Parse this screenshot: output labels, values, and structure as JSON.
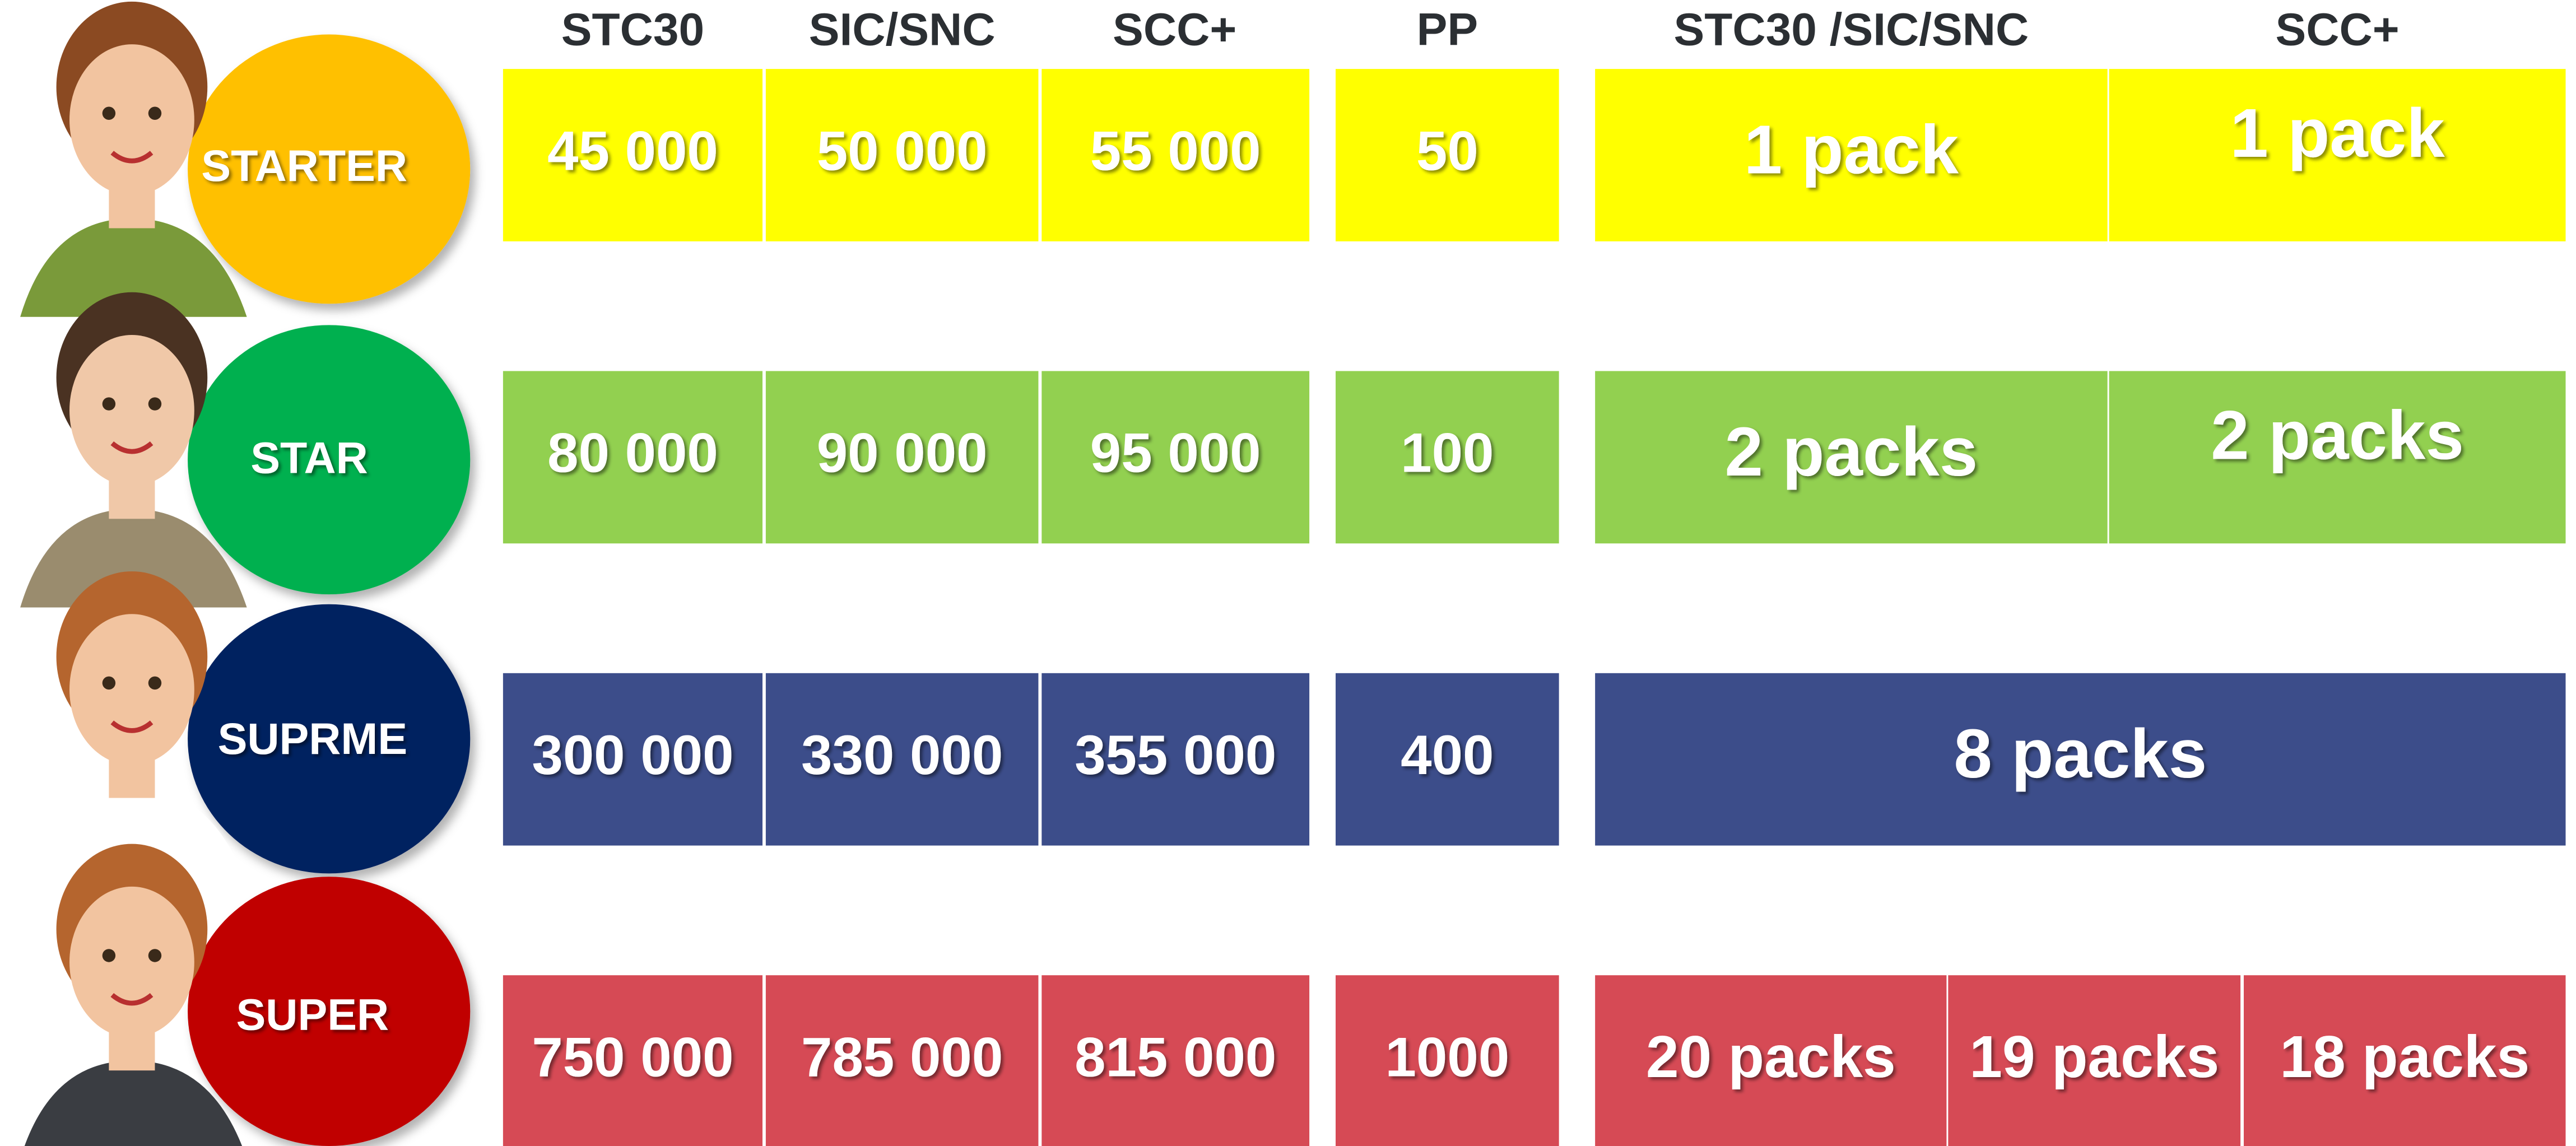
{
  "headers": [
    "STC30",
    "SIC/SNC",
    "SCC+",
    "PP",
    "STC30  /SIC/SNC",
    "SCC+"
  ],
  "rows": [
    {
      "level": "STARTER",
      "values": [
        "45 000",
        "50 000",
        "55 000"
      ],
      "pp": "50",
      "packs": [
        "1 pack",
        "1 pack"
      ]
    },
    {
      "level": "STAR",
      "values": [
        "80 000",
        "90 000",
        "95 000"
      ],
      "pp": "100",
      "packs": [
        "2 packs",
        "2 packs"
      ]
    },
    {
      "level": "SUPRME",
      "values": [
        "300 000",
        "330 000",
        "355 000"
      ],
      "pp": "400",
      "packs": [
        "8 packs"
      ]
    },
    {
      "level": "SUPER",
      "values": [
        "750 000",
        "785 000",
        "815 000"
      ],
      "pp": "1000",
      "packs": [
        "20  packs",
        "19 packs",
        "18 packs"
      ]
    }
  ]
}
